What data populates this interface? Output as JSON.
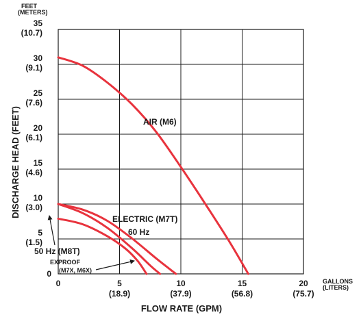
{
  "chart_data": {
    "type": "line",
    "title": "",
    "xlabel": "FLOW RATE (GPM)",
    "ylabel": "DISCHARGE HEAD (FEET)",
    "x_unit_label": [
      "GALLONS",
      "(LITERS)"
    ],
    "y_unit_label": [
      "FEET",
      "(METERS)"
    ],
    "xlim": [
      0,
      20
    ],
    "ylim": [
      0,
      35
    ],
    "grid": true,
    "x_ticks": [
      {
        "value": 0,
        "label": "0",
        "sub": ""
      },
      {
        "value": 5,
        "label": "5",
        "sub": "(18.9)"
      },
      {
        "value": 10,
        "label": "10",
        "sub": "(37.9)"
      },
      {
        "value": 15,
        "label": "15",
        "sub": "(56.8)"
      },
      {
        "value": 20,
        "label": "20",
        "sub": "(75.7)"
      }
    ],
    "y_ticks": [
      {
        "value": 0,
        "label": "0",
        "sub": ""
      },
      {
        "value": 5,
        "label": "5",
        "sub": "(1.5)"
      },
      {
        "value": 10,
        "label": "10",
        "sub": "(3.0)"
      },
      {
        "value": 15,
        "label": "15",
        "sub": "(4.6)"
      },
      {
        "value": 20,
        "label": "20",
        "sub": "(6.1)"
      },
      {
        "value": 25,
        "label": "25",
        "sub": "(7.6)"
      },
      {
        "value": 30,
        "label": "30",
        "sub": "(9.1)"
      },
      {
        "value": 35,
        "label": "35",
        "sub": "(10.7)"
      }
    ],
    "series": [
      {
        "name": "AIR (M6)",
        "color": "#e8333d",
        "points": [
          [
            0,
            31
          ],
          [
            2,
            29.8
          ],
          [
            4,
            27.4
          ],
          [
            6,
            24.3
          ],
          [
            8,
            20.3
          ],
          [
            10,
            15.3
          ],
          [
            12,
            10
          ],
          [
            14,
            4.5
          ],
          [
            15.5,
            0
          ]
        ]
      },
      {
        "name": "ELECTRIC (M7T) 60 Hz",
        "color": "#e8333d",
        "points": [
          [
            0,
            10
          ],
          [
            2,
            9.2
          ],
          [
            4,
            7.6
          ],
          [
            6,
            5.1
          ],
          [
            8,
            2.2
          ],
          [
            9.6,
            0
          ]
        ]
      },
      {
        "name": "50 Hz (M8T)",
        "color": "#e8333d",
        "points": [
          [
            0,
            10
          ],
          [
            2,
            8.7
          ],
          [
            4,
            6.6
          ],
          [
            6,
            3.7
          ],
          [
            7.5,
            1.2
          ],
          [
            8.3,
            0
          ]
        ]
      },
      {
        "name": "EXPROOF (M7X, M6X)",
        "color": "#e8333d",
        "points": [
          [
            0,
            7.9
          ],
          [
            2,
            7.1
          ],
          [
            4,
            5.4
          ],
          [
            5.5,
            3.6
          ],
          [
            6.5,
            1.8
          ],
          [
            7.2,
            0
          ]
        ]
      }
    ],
    "annotations": [
      {
        "text": "AIR (M6)",
        "x": 10,
        "y": 22
      },
      {
        "text": "ELECTRIC (M7T)",
        "x": 10,
        "y": 8
      },
      {
        "text": "60 Hz",
        "x": 9,
        "y": 6
      },
      {
        "text": "50 Hz (M8T)",
        "x": 2.5,
        "y": 3.5
      },
      {
        "text": "EXPROOF",
        "x": 2.5,
        "y": 1
      },
      {
        "text": "(M7X, M6X)",
        "x": 3.5,
        "y": 0.3
      }
    ]
  }
}
